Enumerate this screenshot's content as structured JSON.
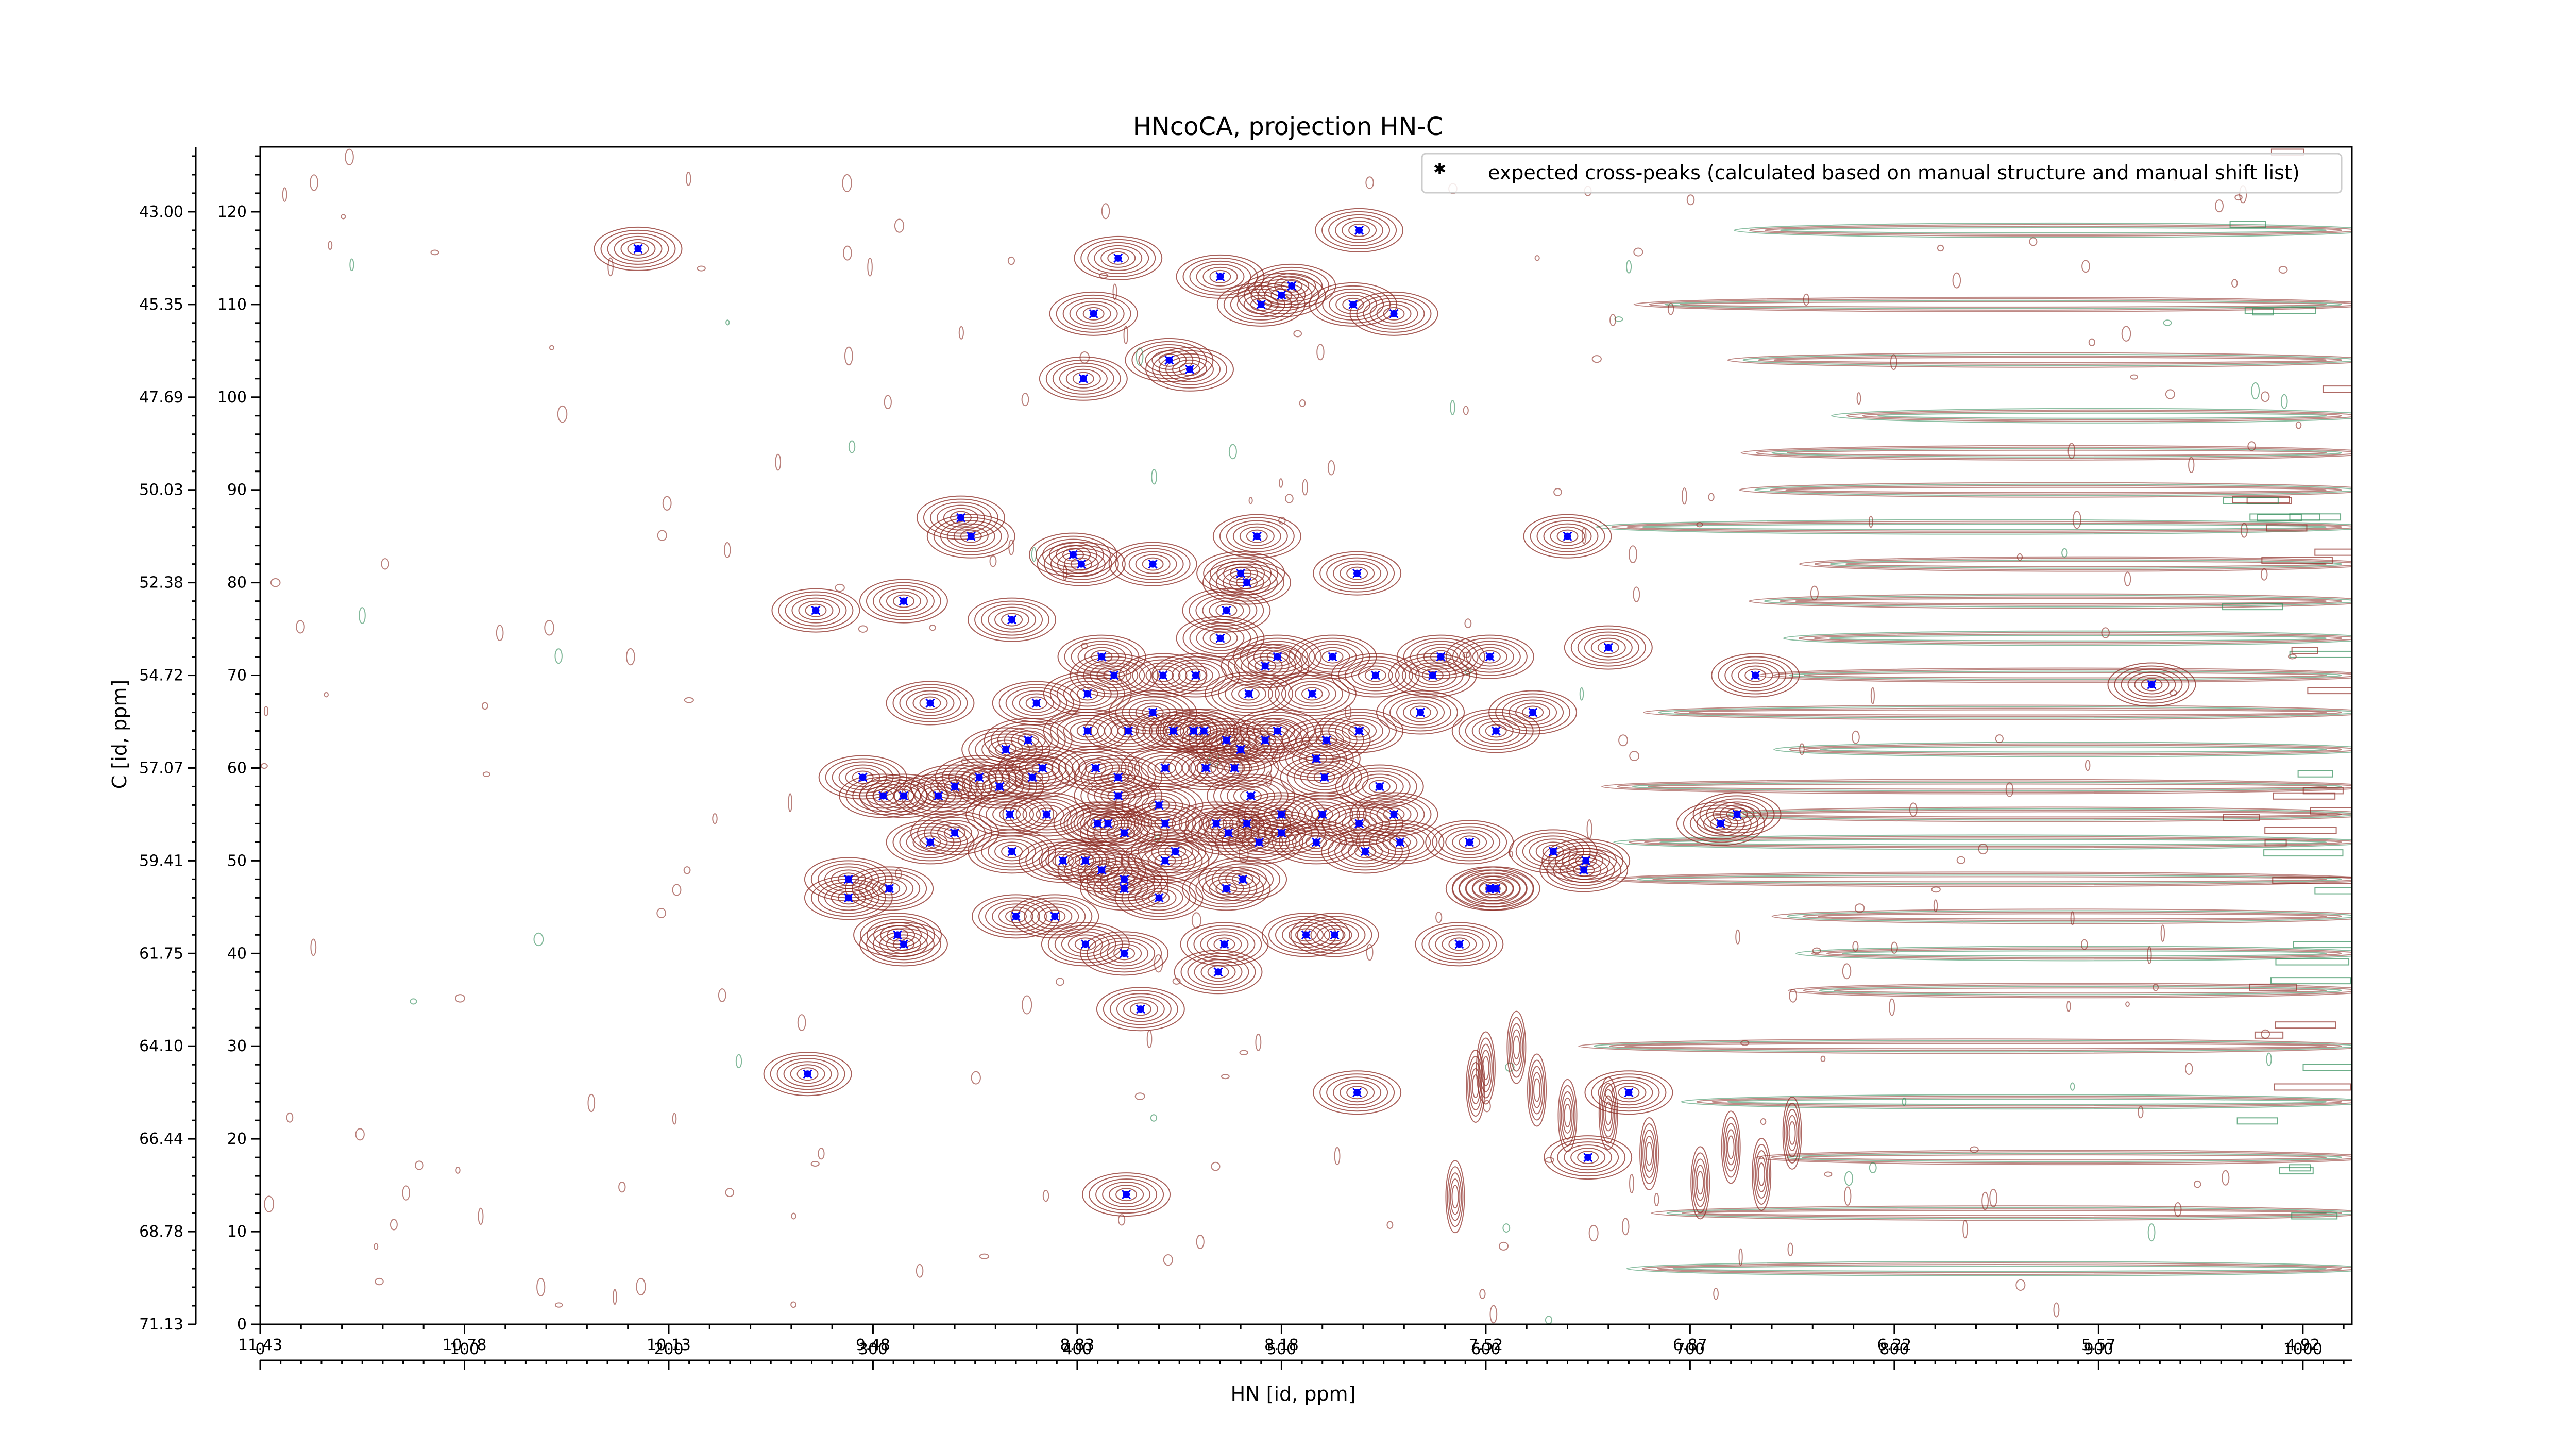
{
  "chart_data": {
    "type": "scatter",
    "title": "HNcoCA, projection HN-C",
    "xlabel": "HN [id, ppm]",
    "ylabel": "C [id, ppm]",
    "xlim": [
      0,
      1024
    ],
    "ylim": [
      0,
      127
    ],
    "x_ticks_index": [
      "0",
      "100",
      "200",
      "300",
      "400",
      "500",
      "600",
      "700",
      "800",
      "900",
      "1000"
    ],
    "x_ticks_ppm": [
      "11.43",
      "10.78",
      "10.13",
      "9.48",
      "8.83",
      "8.18",
      "7.52",
      "6.87",
      "6.22",
      "5.57",
      "4.92"
    ],
    "y_ticks_index": [
      "0",
      "10",
      "20",
      "30",
      "40",
      "50",
      "60",
      "70",
      "80",
      "90",
      "100",
      "110",
      "120"
    ],
    "y_ticks_ppm": [
      "71.13",
      "68.78",
      "66.44",
      "64.10",
      "61.75",
      "59.41",
      "57.07",
      "54.72",
      "52.38",
      "50.03",
      "47.69",
      "45.35",
      "43.00"
    ],
    "legend": {
      "label": "expected cross-peaks (calculated based on manual structure and manual shift list)",
      "position": "top-right"
    },
    "colors": {
      "peaks": "#0000ff",
      "contour_positive": "#8b2a22",
      "contour_negative": "#2e8b57"
    },
    "grid": false,
    "peaks": [
      {
        "x": 185,
        "y": 116
      },
      {
        "x": 420,
        "y": 115
      },
      {
        "x": 538,
        "y": 118
      },
      {
        "x": 408,
        "y": 109
      },
      {
        "x": 470,
        "y": 113
      },
      {
        "x": 500,
        "y": 111
      },
      {
        "x": 505,
        "y": 112
      },
      {
        "x": 535,
        "y": 110
      },
      {
        "x": 555,
        "y": 109
      },
      {
        "x": 490,
        "y": 110
      },
      {
        "x": 445,
        "y": 104
      },
      {
        "x": 455,
        "y": 103
      },
      {
        "x": 403,
        "y": 102
      },
      {
        "x": 343,
        "y": 87
      },
      {
        "x": 348,
        "y": 85
      },
      {
        "x": 398,
        "y": 83
      },
      {
        "x": 402,
        "y": 82
      },
      {
        "x": 437,
        "y": 82
      },
      {
        "x": 488,
        "y": 85
      },
      {
        "x": 480,
        "y": 81
      },
      {
        "x": 483,
        "y": 80
      },
      {
        "x": 537,
        "y": 81
      },
      {
        "x": 640,
        "y": 85
      },
      {
        "x": 315,
        "y": 78
      },
      {
        "x": 368,
        "y": 76
      },
      {
        "x": 272,
        "y": 77
      },
      {
        "x": 473,
        "y": 77
      },
      {
        "x": 470,
        "y": 74
      },
      {
        "x": 498,
        "y": 72
      },
      {
        "x": 492,
        "y": 71
      },
      {
        "x": 525,
        "y": 72
      },
      {
        "x": 578,
        "y": 72
      },
      {
        "x": 602,
        "y": 72
      },
      {
        "x": 660,
        "y": 73
      },
      {
        "x": 412,
        "y": 72
      },
      {
        "x": 418,
        "y": 70
      },
      {
        "x": 442,
        "y": 70
      },
      {
        "x": 458,
        "y": 70
      },
      {
        "x": 546,
        "y": 70
      },
      {
        "x": 574,
        "y": 70
      },
      {
        "x": 328,
        "y": 67
      },
      {
        "x": 380,
        "y": 67
      },
      {
        "x": 405,
        "y": 68
      },
      {
        "x": 515,
        "y": 68
      },
      {
        "x": 484,
        "y": 68
      },
      {
        "x": 437,
        "y": 66
      },
      {
        "x": 447,
        "y": 64
      },
      {
        "x": 425,
        "y": 64
      },
      {
        "x": 365,
        "y": 62
      },
      {
        "x": 376,
        "y": 63
      },
      {
        "x": 405,
        "y": 64
      },
      {
        "x": 457,
        "y": 64
      },
      {
        "x": 462,
        "y": 64
      },
      {
        "x": 473,
        "y": 63
      },
      {
        "x": 480,
        "y": 62
      },
      {
        "x": 492,
        "y": 63
      },
      {
        "x": 498,
        "y": 64
      },
      {
        "x": 522,
        "y": 63
      },
      {
        "x": 538,
        "y": 64
      },
      {
        "x": 568,
        "y": 66
      },
      {
        "x": 605,
        "y": 64
      },
      {
        "x": 623,
        "y": 66
      },
      {
        "x": 732,
        "y": 70
      },
      {
        "x": 926,
        "y": 69
      },
      {
        "x": 383,
        "y": 60
      },
      {
        "x": 409,
        "y": 60
      },
      {
        "x": 420,
        "y": 59
      },
      {
        "x": 443,
        "y": 60
      },
      {
        "x": 463,
        "y": 60
      },
      {
        "x": 477,
        "y": 60
      },
      {
        "x": 485,
        "y": 57
      },
      {
        "x": 521,
        "y": 59
      },
      {
        "x": 517,
        "y": 61
      },
      {
        "x": 548,
        "y": 58
      },
      {
        "x": 295,
        "y": 59
      },
      {
        "x": 305,
        "y": 57
      },
      {
        "x": 315,
        "y": 57
      },
      {
        "x": 332,
        "y": 57
      },
      {
        "x": 352,
        "y": 59
      },
      {
        "x": 362,
        "y": 58
      },
      {
        "x": 378,
        "y": 59
      },
      {
        "x": 340,
        "y": 58
      },
      {
        "x": 420,
        "y": 57
      },
      {
        "x": 440,
        "y": 56
      },
      {
        "x": 367,
        "y": 55
      },
      {
        "x": 385,
        "y": 55
      },
      {
        "x": 410,
        "y": 54
      },
      {
        "x": 415,
        "y": 54
      },
      {
        "x": 423,
        "y": 53
      },
      {
        "x": 443,
        "y": 54
      },
      {
        "x": 468,
        "y": 54
      },
      {
        "x": 474,
        "y": 53
      },
      {
        "x": 483,
        "y": 54
      },
      {
        "x": 500,
        "y": 53
      },
      {
        "x": 500,
        "y": 55
      },
      {
        "x": 520,
        "y": 55
      },
      {
        "x": 538,
        "y": 54
      },
      {
        "x": 555,
        "y": 55
      },
      {
        "x": 340,
        "y": 53
      },
      {
        "x": 328,
        "y": 52
      },
      {
        "x": 368,
        "y": 51
      },
      {
        "x": 393,
        "y": 50
      },
      {
        "x": 404,
        "y": 50
      },
      {
        "x": 412,
        "y": 49
      },
      {
        "x": 443,
        "y": 50
      },
      {
        "x": 448,
        "y": 51
      },
      {
        "x": 489,
        "y": 52
      },
      {
        "x": 517,
        "y": 52
      },
      {
        "x": 541,
        "y": 51
      },
      {
        "x": 558,
        "y": 52
      },
      {
        "x": 592,
        "y": 52
      },
      {
        "x": 633,
        "y": 51
      },
      {
        "x": 649,
        "y": 50
      },
      {
        "x": 715,
        "y": 54
      },
      {
        "x": 723,
        "y": 55
      },
      {
        "x": 602,
        "y": 47
      },
      {
        "x": 605,
        "y": 47
      },
      {
        "x": 648,
        "y": 49
      },
      {
        "x": 288,
        "y": 48
      },
      {
        "x": 288,
        "y": 46
      },
      {
        "x": 308,
        "y": 47
      },
      {
        "x": 312,
        "y": 42
      },
      {
        "x": 315,
        "y": 41
      },
      {
        "x": 370,
        "y": 44
      },
      {
        "x": 389,
        "y": 44
      },
      {
        "x": 423,
        "y": 48
      },
      {
        "x": 423,
        "y": 47
      },
      {
        "x": 440,
        "y": 46
      },
      {
        "x": 473,
        "y": 47
      },
      {
        "x": 481,
        "y": 48
      },
      {
        "x": 404,
        "y": 41
      },
      {
        "x": 423,
        "y": 40
      },
      {
        "x": 472,
        "y": 41
      },
      {
        "x": 469,
        "y": 38
      },
      {
        "x": 512,
        "y": 42
      },
      {
        "x": 526,
        "y": 42
      },
      {
        "x": 587,
        "y": 41
      },
      {
        "x": 431,
        "y": 34
      },
      {
        "x": 268,
        "y": 27
      },
      {
        "x": 537,
        "y": 25
      },
      {
        "x": 670,
        "y": 25
      },
      {
        "x": 650,
        "y": 18
      },
      {
        "x": 424,
        "y": 14
      }
    ]
  }
}
